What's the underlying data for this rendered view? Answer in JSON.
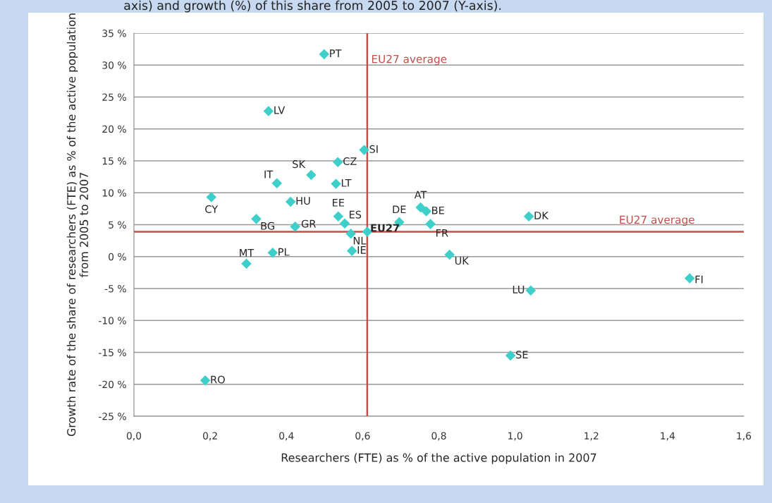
{
  "chart_data": {
    "type": "scatter",
    "title": "axis) and growth (%) of this share from 2005 to 2007 (Y-axis).",
    "xlabel": "Researchers (FTE) as % of the active population in 2007",
    "ylabel": "Growth rate of the share of researchers (FTE) as % of the active population from 2005 to 2007",
    "series": [
      {
        "color": "#3fcfcb",
        "x": [
          0.499,
          0.353,
          0.604,
          0.535,
          0.465,
          0.375,
          0.53,
          0.203,
          0.411,
          0.536,
          0.553,
          0.321,
          0.423,
          0.569,
          0.612,
          0.572,
          0.696,
          0.752,
          0.767,
          0.778,
          1.036,
          0.828,
          0.295,
          0.364,
          1.041,
          1.458,
          0.988,
          0.187
        ],
        "values": [
          31.7,
          22.8,
          16.7,
          14.8,
          12.8,
          11.5,
          11.4,
          9.3,
          8.6,
          6.3,
          5.2,
          5.9,
          4.7,
          3.6,
          3.9,
          0.9,
          5.4,
          7.7,
          7.1,
          5.1,
          6.3,
          0.3,
          -1.1,
          0.6,
          -5.3,
          -3.4,
          -15.5,
          -19.4
        ]
      }
    ],
    "annotations": [
      {
        "text": "PT",
        "x": 0.499,
        "y": 31.7
      },
      {
        "text": "LV",
        "x": 0.353,
        "y": 22.8
      },
      {
        "text": "SI",
        "x": 0.604,
        "y": 16.7
      },
      {
        "text": "CZ",
        "x": 0.535,
        "y": 14.8
      },
      {
        "text": "SK",
        "x": 0.465,
        "y": 12.8
      },
      {
        "text": "IT",
        "x": 0.375,
        "y": 11.5
      },
      {
        "text": "LT",
        "x": 0.53,
        "y": 11.4
      },
      {
        "text": "CY",
        "x": 0.203,
        "y": 9.3
      },
      {
        "text": "HU",
        "x": 0.411,
        "y": 8.6
      },
      {
        "text": "EE",
        "x": 0.536,
        "y": 6.3
      },
      {
        "text": "ES",
        "x": 0.553,
        "y": 5.2
      },
      {
        "text": "BG",
        "x": 0.321,
        "y": 5.9
      },
      {
        "text": "GR",
        "x": 0.423,
        "y": 4.7
      },
      {
        "text": "NL",
        "x": 0.569,
        "y": 3.6
      },
      {
        "text": "EU27",
        "x": 0.612,
        "y": 3.9
      },
      {
        "text": "IE",
        "x": 0.572,
        "y": 0.9
      },
      {
        "text": "DE",
        "x": 0.696,
        "y": 5.4
      },
      {
        "text": "AT",
        "x": 0.752,
        "y": 7.7
      },
      {
        "text": "BE",
        "x": 0.767,
        "y": 7.1
      },
      {
        "text": "FR",
        "x": 0.778,
        "y": 5.1
      },
      {
        "text": "DK",
        "x": 1.036,
        "y": 6.3
      },
      {
        "text": "UK",
        "x": 0.828,
        "y": 0.3
      },
      {
        "text": "MT",
        "x": 0.295,
        "y": -1.1
      },
      {
        "text": "PL",
        "x": 0.364,
        "y": 0.6
      },
      {
        "text": "LU",
        "x": 1.041,
        "y": -5.3
      },
      {
        "text": "FI",
        "x": 1.458,
        "y": -3.4
      },
      {
        "text": "SE",
        "x": 0.988,
        "y": -15.5
      },
      {
        "text": "RO",
        "x": 0.187,
        "y": -19.4
      }
    ],
    "ref_lines": [
      {
        "axis": "x",
        "value": 0.612,
        "label": "EU27 average",
        "color": "#c0504d"
      },
      {
        "axis": "y",
        "value": 3.9,
        "label": "EU27 average",
        "color": "#c0504d"
      }
    ],
    "xlim": [
      0,
      1.6
    ],
    "xticks": [
      {
        "value": 0,
        "label": "0,0"
      },
      {
        "value": 0.2,
        "label": "0,2"
      },
      {
        "value": 0.4,
        "label": "0,4"
      },
      {
        "value": 0.6,
        "label": "0,6"
      },
      {
        "value": 0.8,
        "label": "0,8"
      },
      {
        "value": 1.0,
        "label": "1,0"
      },
      {
        "value": 1.2,
        "label": "1,2"
      },
      {
        "value": 1.4,
        "label": "1,4"
      },
      {
        "value": 1.6,
        "label": "1,6"
      }
    ],
    "ylim": [
      -25,
      35
    ],
    "yticks": [
      {
        "value": -25,
        "label": "-25 %"
      },
      {
        "value": -20,
        "label": "-20 %"
      },
      {
        "value": -15,
        "label": "-15 %"
      },
      {
        "value": -10,
        "label": "-10 %"
      },
      {
        "value": -5,
        "label": "-5 %"
      },
      {
        "value": 0,
        "label": "0 %"
      },
      {
        "value": 5,
        "label": "5 %"
      },
      {
        "value": 10,
        "label": "10 %"
      },
      {
        "value": 15,
        "label": "15 %"
      },
      {
        "value": 20,
        "label": "20 %"
      },
      {
        "value": 25,
        "label": "25 %"
      },
      {
        "value": 30,
        "label": "30 %"
      },
      {
        "value": 35,
        "label": "35 %"
      }
    ],
    "grid": "y",
    "marker": "diamond"
  }
}
